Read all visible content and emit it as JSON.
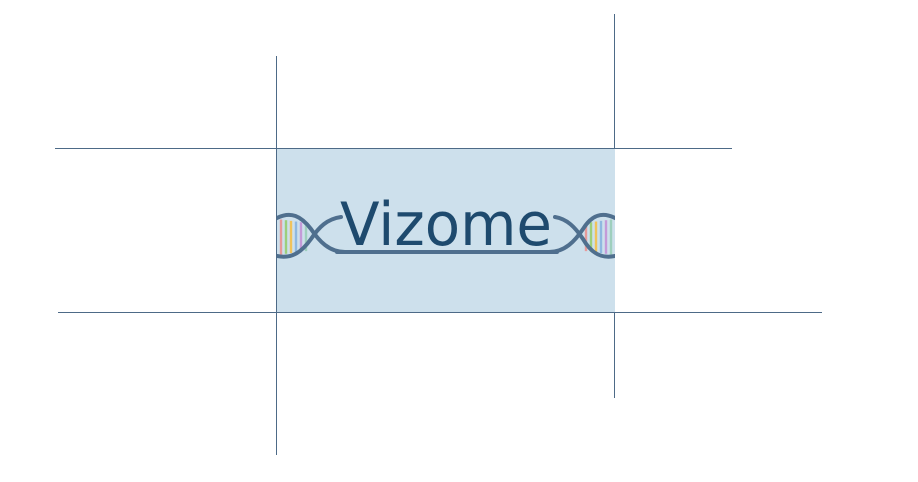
{
  "logo": {
    "wordmark": "Vizome",
    "brand_color": "#1e4a6e",
    "panel_color": "#cde0ec",
    "helix_color": "#4f6f8e",
    "rung_colors": [
      "#e79a9a",
      "#9ccf7c",
      "#f0c35c",
      "#8fb8e0",
      "#c49ad8",
      "#9ecfbd"
    ]
  },
  "guides": {
    "color": "#4d6a87"
  }
}
